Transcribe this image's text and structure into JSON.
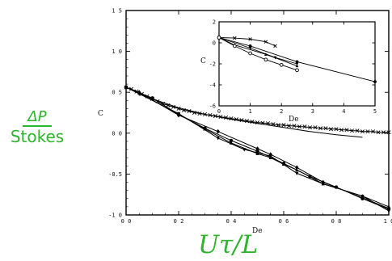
{
  "slide": {
    "left_label_num": "ΔP",
    "left_label_den": "Stokes",
    "x_variable": "Uτ/L"
  },
  "colors": {
    "label_green": "#2db52d",
    "line": "#000000"
  },
  "chart_data": [
    {
      "type": "line",
      "title": "",
      "xlabel": "De",
      "ylabel": "C",
      "xlim": [
        0.0,
        1.0
      ],
      "ylim": [
        -1.0,
        1.5
      ],
      "xticks": [
        0.0,
        0.2,
        0.4,
        0.6,
        0.8,
        1.0
      ],
      "xtick_labels": [
        "0 0",
        "0 2",
        "0 4",
        "0 6",
        "0 8",
        "1 0"
      ],
      "yticks": [
        -1.0,
        -0.5,
        0.0,
        0.5,
        1.0,
        1.5
      ],
      "ytick_labels": [
        "-1 0",
        "-0.5",
        "0 0",
        "0 5",
        "1 0",
        "1 5"
      ],
      "grid": false,
      "series": [
        {
          "marker": "x",
          "style": "line",
          "x": [
            0.0,
            0.02,
            0.04,
            0.06,
            0.08,
            0.1,
            0.12,
            0.14,
            0.16,
            0.18,
            0.2,
            0.22,
            0.24,
            0.26,
            0.28,
            0.3,
            0.32,
            0.34,
            0.36,
            0.38,
            0.4,
            0.42,
            0.44,
            0.46,
            0.48,
            0.5,
            0.52,
            0.54,
            0.56,
            0.58,
            0.6,
            0.62,
            0.64,
            0.66,
            0.68,
            0.7,
            0.72,
            0.74,
            0.76,
            0.78,
            0.8,
            0.82,
            0.84,
            0.86,
            0.88,
            0.9,
            0.92,
            0.94,
            0.96,
            0.98,
            1.0
          ],
          "y": [
            0.56,
            0.54,
            0.51,
            0.48,
            0.45,
            0.42,
            0.39,
            0.36,
            0.34,
            0.32,
            0.3,
            0.28,
            0.27,
            0.25,
            0.24,
            0.23,
            0.22,
            0.21,
            0.2,
            0.19,
            0.18,
            0.17,
            0.16,
            0.15,
            0.14,
            0.13,
            0.125,
            0.12,
            0.11,
            0.1,
            0.1,
            0.09,
            0.09,
            0.08,
            0.08,
            0.07,
            0.07,
            0.06,
            0.06,
            0.05,
            0.05,
            0.04,
            0.04,
            0.03,
            0.03,
            0.02,
            0.02,
            0.02,
            0.01,
            0.01,
            0.01
          ]
        },
        {
          "marker": "none",
          "style": "line",
          "x": [
            0.0,
            0.1,
            0.2,
            0.3,
            0.4,
            0.5,
            0.6,
            0.7,
            0.8,
            0.9
          ],
          "y": [
            0.56,
            0.42,
            0.31,
            0.23,
            0.17,
            0.12,
            0.07,
            0.02,
            -0.02,
            -0.05
          ]
        },
        {
          "marker": "diamond",
          "style": "line",
          "x": [
            0.0,
            0.05,
            0.2,
            0.35,
            0.5,
            0.55,
            0.65,
            0.75,
            0.9,
            1.0
          ],
          "y": [
            0.56,
            0.5,
            0.22,
            0.02,
            -0.19,
            -0.26,
            -0.42,
            -0.6,
            -0.79,
            -0.92
          ]
        },
        {
          "marker": "triangle-up",
          "style": "line",
          "x": [
            0.0,
            0.05,
            0.2,
            0.3,
            0.4,
            0.5,
            0.55,
            0.6,
            0.65,
            0.75,
            0.9,
            1.0
          ],
          "y": [
            0.56,
            0.49,
            0.23,
            0.05,
            -0.12,
            -0.25,
            -0.3,
            -0.38,
            -0.45,
            -0.62,
            -0.77,
            -0.9
          ]
        },
        {
          "marker": "triangle-down",
          "style": "line",
          "x": [
            0.0,
            0.05,
            0.2,
            0.35,
            0.45,
            0.55,
            0.65,
            0.75,
            0.9,
            1.0
          ],
          "y": [
            0.56,
            0.48,
            0.24,
            -0.06,
            -0.2,
            -0.28,
            -0.49,
            -0.62,
            -0.77,
            -0.95
          ]
        },
        {
          "marker": "filled-circle",
          "style": "line",
          "x": [
            0.0,
            0.1,
            0.2,
            0.3,
            0.4,
            0.5,
            0.6,
            0.7,
            0.8,
            0.9,
            1.0
          ],
          "y": [
            0.56,
            0.43,
            0.23,
            0.06,
            -0.09,
            -0.22,
            -0.37,
            -0.53,
            -0.66,
            -0.8,
            -0.93
          ]
        }
      ]
    },
    {
      "type": "line",
      "title": "",
      "xlabel": "De",
      "ylabel": "C",
      "xlim": [
        0,
        5
      ],
      "ylim": [
        -6,
        2
      ],
      "xticks": [
        0,
        1,
        2,
        3,
        4,
        5
      ],
      "xtick_labels": [
        "0",
        "1",
        "2",
        "3",
        "4",
        "5"
      ],
      "yticks": [
        -6,
        -4,
        -2,
        0,
        2
      ],
      "ytick_labels": [
        "-6",
        "-4",
        "-2",
        "0",
        "2"
      ],
      "grid": false,
      "series": [
        {
          "marker": "x",
          "style": "line",
          "x": [
            0,
            0.5,
            1.0,
            1.5,
            1.8
          ],
          "y": [
            0.5,
            0.45,
            0.35,
            0.1,
            -0.3
          ]
        },
        {
          "marker": "filled-circle",
          "style": "line",
          "x": [
            0,
            1,
            2.5,
            5
          ],
          "y": [
            0.5,
            -0.3,
            -1.8,
            -3.7
          ]
        },
        {
          "marker": "triangle-up",
          "style": "line",
          "x": [
            0,
            0.5,
            1.5,
            2.5
          ],
          "y": [
            0.5,
            -0.2,
            -1.1,
            -2.2
          ]
        },
        {
          "marker": "triangle-down",
          "style": "line",
          "x": [
            0,
            1,
            1.8,
            2.5
          ],
          "y": [
            0.5,
            -0.5,
            -1.4,
            -2.0
          ]
        },
        {
          "marker": "open-circle",
          "style": "line",
          "x": [
            0,
            0.5,
            1.0,
            1.5,
            2.0,
            2.5
          ],
          "y": [
            0.5,
            -0.3,
            -1.0,
            -1.6,
            -2.1,
            -2.6
          ]
        }
      ]
    }
  ]
}
